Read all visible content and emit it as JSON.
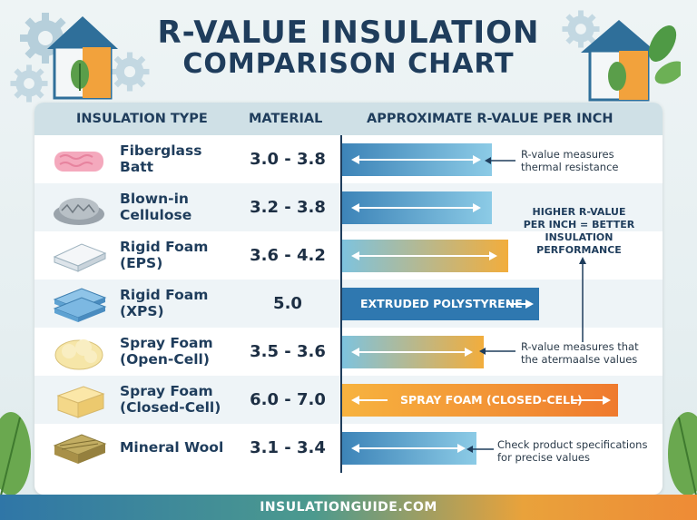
{
  "title": {
    "line1": "R-VALUE INSULATION",
    "line2": "COMPARISON CHART"
  },
  "headers": {
    "type": "INSULATION TYPE",
    "material": "MATERIAL",
    "rvalue": "APPROXIMATE R-VALUE PER INCH"
  },
  "rows": [
    {
      "name": "Fiberglass\nBatt",
      "value": "3.0 - 3.8",
      "icon": "fiberglass-batt-icon"
    },
    {
      "name": "Blown-in\nCellulose",
      "value": "3.2 - 3.8",
      "icon": "cellulose-icon"
    },
    {
      "name": "Rigid Foam\n(EPS)",
      "value": "3.6 - 4.2",
      "icon": "eps-board-icon"
    },
    {
      "name": "Rigid Foam\n(XPS)",
      "value": "5.0",
      "icon": "xps-board-icon"
    },
    {
      "name": "Spray Foam\n(Open-Cell)",
      "value": "3.5 - 3.6",
      "icon": "open-cell-foam-icon"
    },
    {
      "name": "Spray Foam\n(Closed-Cell)",
      "value": "6.0 - 7.0",
      "icon": "closed-cell-foam-icon"
    },
    {
      "name": "Mineral Wool",
      "value": "3.1 - 3.4",
      "icon": "mineral-wool-icon"
    }
  ],
  "chart_data": {
    "type": "bar",
    "title": "R-VALUE INSULATION COMPARISON CHART",
    "xlabel": "APPROXIMATE R-VALUE PER INCH",
    "ylabel": "INSULATION TYPE",
    "categories": [
      "Fiberglass Batt",
      "Blown-in Cellulose",
      "Rigid Foam (EPS)",
      "Rigid Foam (XPS)",
      "Spray Foam (Open-Cell)",
      "Spray Foam (Closed-Cell)",
      "Mineral Wool"
    ],
    "values": [
      3.8,
      3.8,
      4.2,
      5.0,
      3.6,
      7.0,
      3.4
    ],
    "xlim": [
      0,
      7.5
    ],
    "bar_labels": [
      "",
      "",
      "",
      "EXTRUDED POLYSTYRENE",
      "",
      "SPRAY FOAM (CLOSED-CELL)",
      ""
    ],
    "bar_colors": [
      "blue",
      "blue",
      "orange",
      "blue",
      "orange",
      "orange",
      "blue"
    ]
  },
  "colors": {
    "blue_start": "#3d84b8",
    "blue_end": "#8ccbe6",
    "orange_start": "#7ec3de",
    "orange_end": "#f2ad3c",
    "closed_start": "#f7b33f",
    "closed_end": "#ef7a2e",
    "xps": "#2f78b0",
    "navy": "#1f3d5c"
  },
  "notes": {
    "note1": "R-value measures\nthermal resistance",
    "callout": "HIGHER R-VALUE\nPER INCH = BETTER\nINSULATION\nPERFORMANCE",
    "note2": "R-value measures that\nthe atermaalse values",
    "note3": "Check product specifications\nfor precise values"
  },
  "footer": "INSULATIONGUIDE.COM"
}
